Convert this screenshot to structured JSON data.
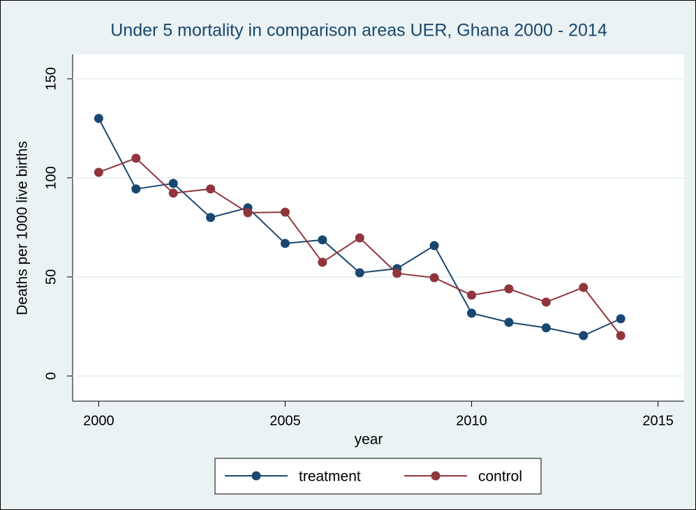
{
  "chart_data": {
    "type": "line",
    "title": "Under 5 mortality in comparison areas UER, Ghana 2000 - 2014",
    "x_label": "year",
    "y_label": "Deaths per 1000 live births",
    "x": [
      2000,
      2001,
      2002,
      2003,
      2004,
      2005,
      2006,
      2007,
      2008,
      2009,
      2010,
      2011,
      2012,
      2013,
      2014
    ],
    "series": [
      {
        "name": "treatment",
        "color": "#1a476f",
        "values": [
          130,
          94.4,
          97.2,
          80,
          84.9,
          66.9,
          68.7,
          52.1,
          54.2,
          65.8,
          31.7,
          27.1,
          24.3,
          20.4,
          28.9
        ]
      },
      {
        "name": "control",
        "color": "#90353b",
        "values": [
          102.8,
          109.9,
          92.3,
          94.4,
          82.4,
          82.7,
          57.4,
          69.7,
          51.8,
          49.6,
          40.8,
          44,
          37.3,
          44.7,
          20.4
        ]
      }
    ],
    "xlim": [
      1999.3,
      2015.7
    ],
    "xticks": [
      2000,
      2005,
      2010,
      2015
    ],
    "ylim": [
      -12.7,
      162.3
    ],
    "yticks": [
      0,
      50,
      100,
      150
    ],
    "grid": true,
    "legend": "bottom"
  }
}
